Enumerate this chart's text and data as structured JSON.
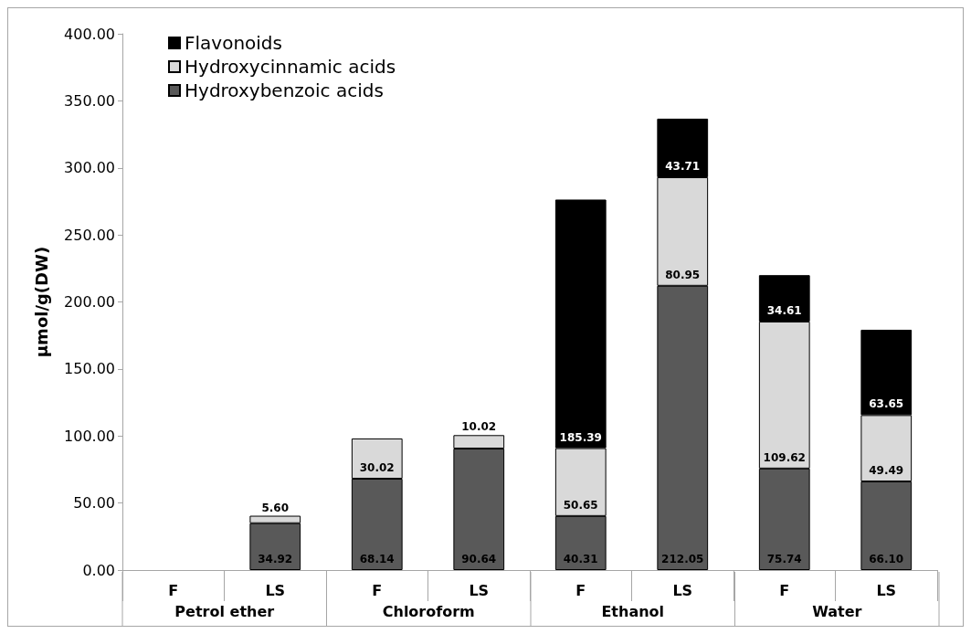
{
  "chart_data": {
    "type": "bar",
    "stacked": true,
    "ylabel": "μmol/g(DW)",
    "categories": [
      "F",
      "LS",
      "F",
      "LS",
      "F",
      "LS",
      "F",
      "LS"
    ],
    "annotations": [
      "Petrol ether",
      "Chloroform",
      "Ethanol",
      "Water"
    ],
    "series": [
      {
        "name": "Hydroxybenzoic acids",
        "color": "#595959",
        "values": [
          null,
          34.92,
          68.14,
          90.64,
          40.31,
          212.05,
          75.74,
          66.1
        ],
        "value_labels": [
          null,
          "34.92",
          "68.14",
          "90.64",
          "40.31",
          "212.05",
          "75.74",
          "66.10"
        ]
      },
      {
        "name": "Hydroxycinnamic acids",
        "color": "#d9d9d9",
        "values": [
          null,
          5.6,
          30.02,
          10.02,
          50.65,
          80.95,
          109.62,
          49.49
        ],
        "value_labels": [
          null,
          "5.60",
          "30.02",
          "10.02",
          "50.65",
          "80.95",
          "109.62",
          "49.49"
        ]
      },
      {
        "name": "Flavonoids",
        "color": "#000000",
        "values": [
          null,
          null,
          null,
          null,
          185.39,
          43.71,
          34.61,
          63.65
        ],
        "value_labels": [
          null,
          null,
          null,
          null,
          "185.39",
          "43.71",
          "34.61",
          "63.65"
        ]
      }
    ],
    "ylim": [
      0,
      400
    ],
    "yticks": [
      {
        "value": 0,
        "label": "0.00"
      },
      {
        "value": 50,
        "label": "50.00"
      },
      {
        "value": 100,
        "label": "100.00"
      },
      {
        "value": 150,
        "label": "150.00"
      },
      {
        "value": 200,
        "label": "200.00"
      },
      {
        "value": 250,
        "label": "250.00"
      },
      {
        "value": 300,
        "label": "300.00"
      },
      {
        "value": 350,
        "label": "350.00"
      },
      {
        "value": 400,
        "label": "400.00"
      }
    ],
    "grid": false,
    "legend": "top left"
  }
}
